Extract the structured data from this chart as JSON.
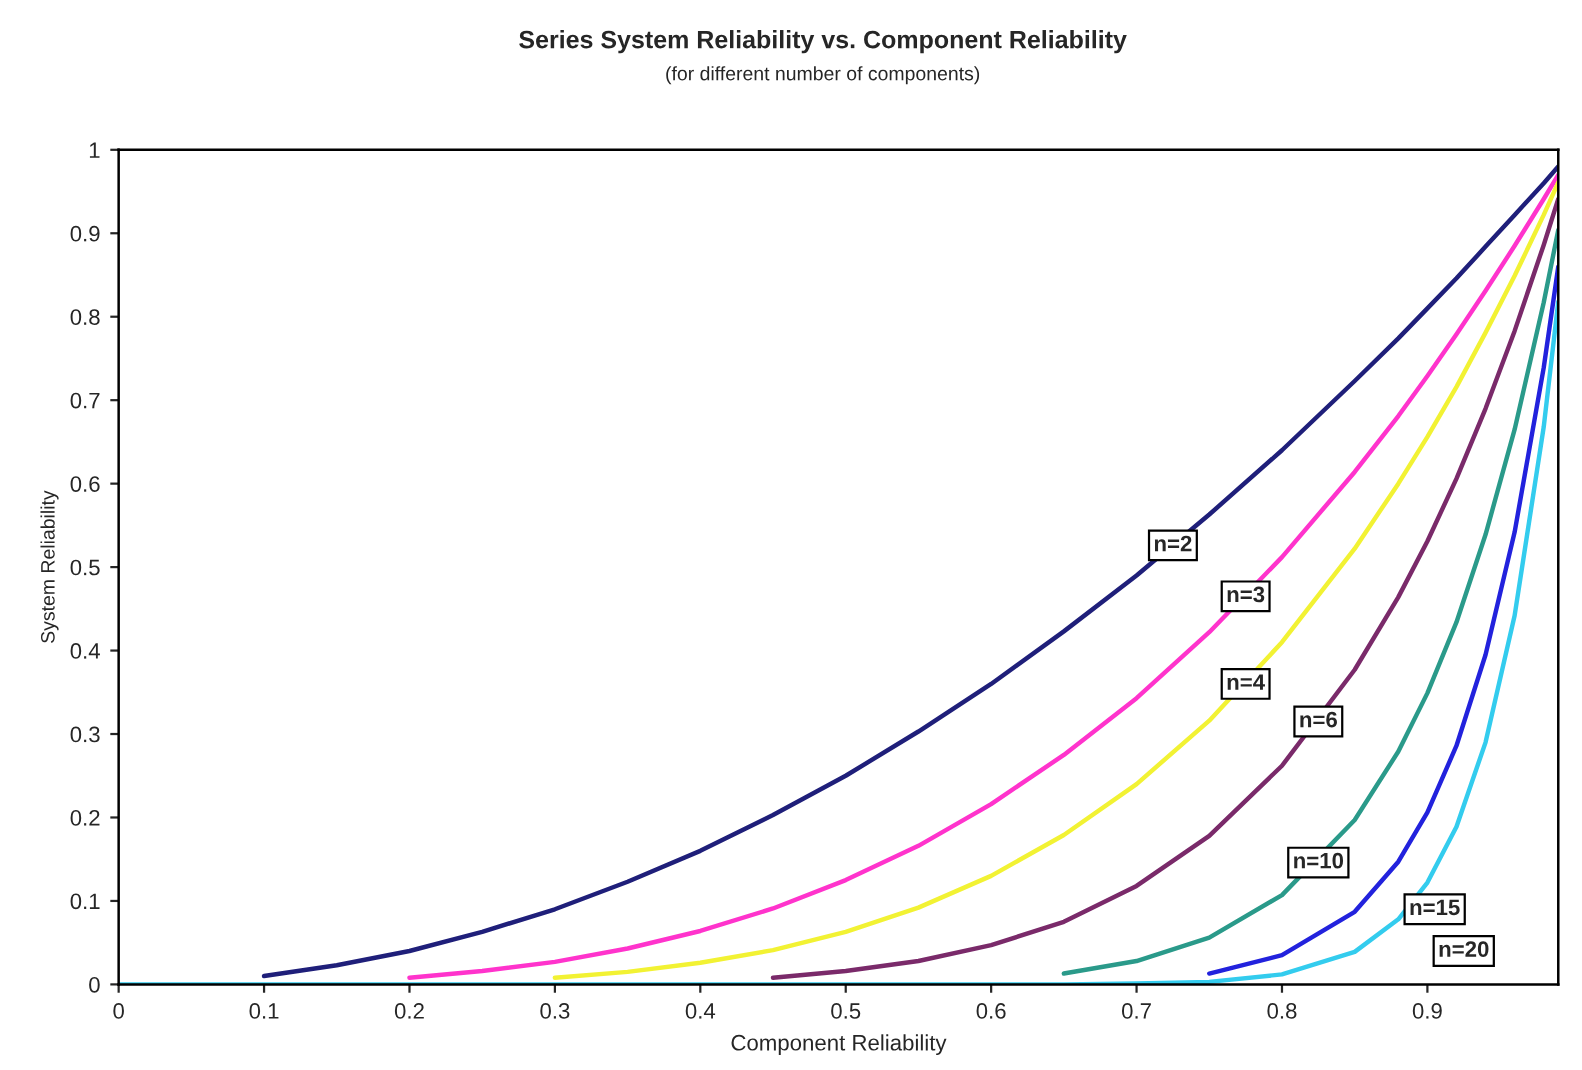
{
  "chart_data": {
    "type": "line",
    "title": "Series System Reliability vs. Component Reliability",
    "subtitle": "(for different number of components)",
    "xlabel": "Component Reliability",
    "ylabel": "System Reliability",
    "x": [
      0,
      0.05,
      0.1,
      0.15,
      0.2,
      0.25,
      0.3,
      0.35,
      0.4,
      0.45,
      0.5,
      0.55,
      0.6,
      0.65,
      0.7,
      0.75,
      0.8,
      0.85,
      0.88,
      0.9,
      0.92,
      0.94,
      0.96,
      0.98,
      0.99
    ],
    "series": [
      {
        "color": "#1f1f7a",
        "x": [
          0.1,
          0.15,
          0.2,
          0.25,
          0.3,
          0.35,
          0.4,
          0.45,
          0.5,
          0.55,
          0.6,
          0.65,
          0.7,
          0.75,
          0.8,
          0.85,
          0.88,
          0.9,
          0.92,
          0.94,
          0.96,
          0.98,
          0.99
        ],
        "values": [
          0.01,
          0.023,
          0.04,
          0.063,
          0.09,
          0.123,
          0.16,
          0.203,
          0.25,
          0.303,
          0.36,
          0.423,
          0.49,
          0.563,
          0.64,
          0.723,
          0.774,
          0.81,
          0.846,
          0.884,
          0.922,
          0.96,
          0.98
        ]
      },
      {
        "color": "#ff33cc",
        "x": [
          0.2,
          0.25,
          0.3,
          0.35,
          0.4,
          0.45,
          0.5,
          0.55,
          0.6,
          0.65,
          0.7,
          0.75,
          0.8,
          0.85,
          0.88,
          0.9,
          0.92,
          0.94,
          0.96,
          0.98,
          0.99
        ],
        "values": [
          0.008,
          0.016,
          0.027,
          0.043,
          0.064,
          0.091,
          0.125,
          0.166,
          0.216,
          0.275,
          0.343,
          0.422,
          0.512,
          0.614,
          0.681,
          0.729,
          0.779,
          0.831,
          0.885,
          0.941,
          0.97
        ]
      },
      {
        "color": "#f2f233",
        "x": [
          0.3,
          0.35,
          0.4,
          0.45,
          0.5,
          0.55,
          0.6,
          0.65,
          0.7,
          0.75,
          0.8,
          0.85,
          0.88,
          0.9,
          0.92,
          0.94,
          0.96,
          0.98,
          0.99
        ],
        "values": [
          0.008,
          0.015,
          0.026,
          0.041,
          0.063,
          0.092,
          0.13,
          0.179,
          0.24,
          0.316,
          0.41,
          0.522,
          0.6,
          0.656,
          0.716,
          0.781,
          0.849,
          0.922,
          0.961
        ]
      },
      {
        "color": "#7a2a6a",
        "x": [
          0.45,
          0.5,
          0.55,
          0.6,
          0.65,
          0.7,
          0.75,
          0.8,
          0.85,
          0.88,
          0.9,
          0.92,
          0.94,
          0.96,
          0.98,
          0.99
        ],
        "values": [
          0.008,
          0.016,
          0.028,
          0.047,
          0.075,
          0.118,
          0.178,
          0.262,
          0.377,
          0.464,
          0.531,
          0.606,
          0.69,
          0.783,
          0.886,
          0.941
        ]
      },
      {
        "color": "#2a9a8a",
        "x": [
          0.65,
          0.7,
          0.75,
          0.8,
          0.85,
          0.88,
          0.9,
          0.92,
          0.94,
          0.96,
          0.98,
          0.99
        ],
        "values": [
          0.013,
          0.028,
          0.056,
          0.107,
          0.197,
          0.279,
          0.349,
          0.434,
          0.539,
          0.665,
          0.817,
          0.904
        ]
      },
      {
        "color": "#2222dd",
        "x": [
          0.75,
          0.8,
          0.85,
          0.88,
          0.9,
          0.92,
          0.94,
          0.96,
          0.98,
          0.99
        ],
        "values": [
          0.013,
          0.035,
          0.087,
          0.147,
          0.206,
          0.286,
          0.395,
          0.542,
          0.739,
          0.86
        ]
      },
      {
        "color": "#33ccee",
        "values": [
          0,
          0,
          0,
          0,
          0,
          0,
          0,
          0,
          0,
          0,
          0,
          0,
          0,
          0,
          0.001,
          0.003,
          0.012,
          0.039,
          0.078,
          0.122,
          0.189,
          0.29,
          0.442,
          0.668,
          0.818
        ]
      }
    ],
    "annotations": [
      {
        "text": "n=2",
        "x": 0.725,
        "y": 0.526
      },
      {
        "text": "n=3",
        "x": 0.775,
        "y": 0.465
      },
      {
        "text": "n=4",
        "x": 0.775,
        "y": 0.36
      },
      {
        "text": "n=6",
        "x": 0.825,
        "y": 0.315
      },
      {
        "text": "n=10",
        "x": 0.825,
        "y": 0.146
      },
      {
        "text": "n=15",
        "x": 0.905,
        "y": 0.09
      },
      {
        "text": "n=20",
        "x": 0.925,
        "y": 0.04
      }
    ],
    "xlim": [
      0,
      0.99
    ],
    "ylim": [
      0,
      1
    ],
    "xticks": [
      0,
      0.1,
      0.2,
      0.3,
      0.4,
      0.5,
      0.6,
      0.7,
      0.8,
      0.9
    ],
    "yticks": [
      0,
      0.1,
      0.2,
      0.3,
      0.4,
      0.5,
      0.6,
      0.7,
      0.8,
      0.9,
      1
    ],
    "grid": false,
    "legend": false
  }
}
